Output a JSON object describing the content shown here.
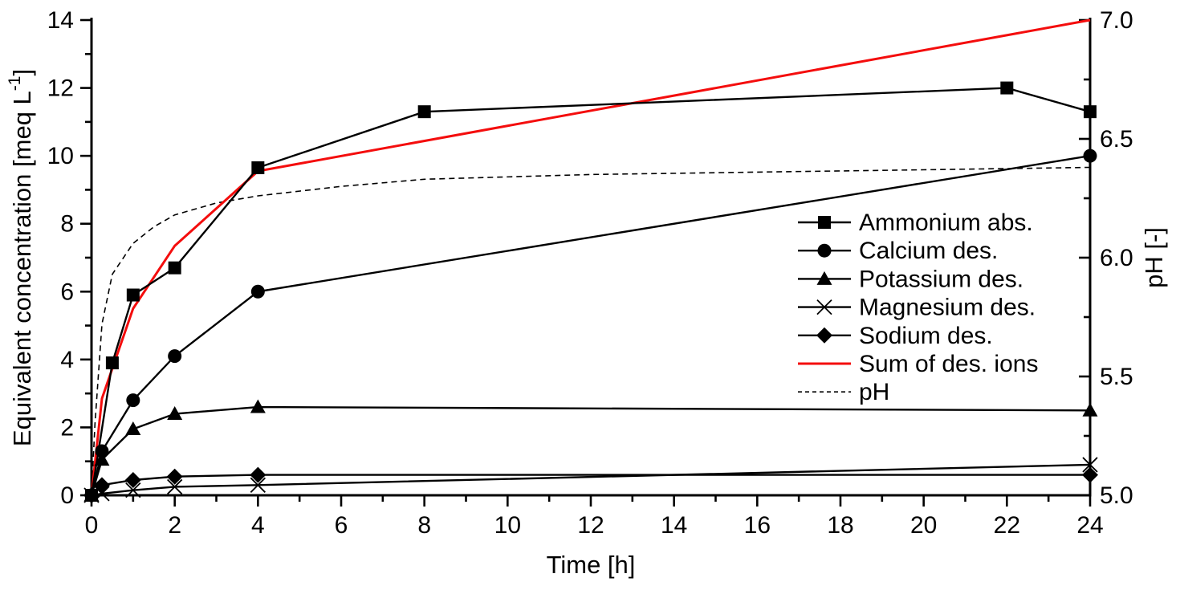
{
  "page": {
    "title": "",
    "background_color": "#ffffff",
    "foreground_color": "#000000",
    "accent_color": "#f40d0d"
  },
  "chart_data": {
    "type": "line",
    "title": "",
    "xlabel": "Time [h]",
    "ylabel_left": "Equivalent concentration [meq L⁻¹]",
    "ylabel_left_parts": {
      "pre": "Equivalent concentration [meq L",
      "sup": "-1",
      "post": "]"
    },
    "ylabel_right": "pH [-]",
    "xlim": [
      0,
      24
    ],
    "ylim_left": [
      0,
      14
    ],
    "ylim_right": [
      5.0,
      7.0
    ],
    "grid": false,
    "x_major_ticks": [
      0,
      2,
      4,
      6,
      8,
      10,
      12,
      14,
      16,
      18,
      20,
      22,
      24
    ],
    "x_tick_labels": [
      "0",
      "2",
      "4",
      "6",
      "8",
      "10",
      "12",
      "14",
      "16",
      "18",
      "20",
      "22",
      "24"
    ],
    "x_minor_ticks": [
      1,
      3,
      5,
      7,
      9,
      11,
      13,
      15,
      17,
      19,
      21,
      23
    ],
    "left_major_ticks": [
      0,
      2,
      4,
      6,
      8,
      10,
      12,
      14
    ],
    "left_tick_labels": [
      "0",
      "2",
      "4",
      "6",
      "8",
      "10",
      "12",
      "14"
    ],
    "left_minor_ticks": [
      1,
      3,
      5,
      7,
      9,
      11,
      13
    ],
    "right_major_ticks": [
      5.0,
      5.5,
      6.0,
      6.5,
      7.0
    ],
    "right_tick_labels": [
      "5.0",
      "5.5",
      "6.0",
      "6.5",
      "7.0"
    ],
    "right_minor_ticks": [
      5.25,
      5.75,
      6.25,
      6.75
    ],
    "legend": {
      "position": "inside-right"
    },
    "series": [
      {
        "name": "Ammonium abs.",
        "axis": "left",
        "marker": "square",
        "line_style": "solid",
        "color": "#000000",
        "points": [
          [
            0,
            0
          ],
          [
            0.5,
            3.9
          ],
          [
            1,
            5.9
          ],
          [
            2,
            6.7
          ],
          [
            4,
            9.65
          ],
          [
            8,
            11.3
          ],
          [
            22,
            12.0
          ],
          [
            24,
            11.3
          ]
        ]
      },
      {
        "name": "Calcium des.",
        "axis": "left",
        "marker": "circle",
        "line_style": "solid",
        "color": "#000000",
        "points": [
          [
            0,
            0
          ],
          [
            0.25,
            1.3
          ],
          [
            1,
            2.8
          ],
          [
            2,
            4.1
          ],
          [
            4,
            6.0
          ],
          [
            24,
            10.0
          ]
        ]
      },
      {
        "name": "Potassium des.",
        "axis": "left",
        "marker": "triangle-up",
        "line_style": "solid",
        "color": "#000000",
        "points": [
          [
            0,
            0
          ],
          [
            0.25,
            1.05
          ],
          [
            1,
            1.95
          ],
          [
            2,
            2.4
          ],
          [
            4,
            2.6
          ],
          [
            24,
            2.5
          ]
        ]
      },
      {
        "name": "Magnesium des.",
        "axis": "left",
        "marker": "x",
        "line_style": "solid",
        "color": "#000000",
        "points": [
          [
            0,
            0
          ],
          [
            0.25,
            0.05
          ],
          [
            1,
            0.15
          ],
          [
            2,
            0.25
          ],
          [
            4,
            0.3
          ],
          [
            24,
            0.9
          ]
        ]
      },
      {
        "name": "Sodium des.",
        "axis": "left",
        "marker": "diamond",
        "line_style": "solid",
        "color": "#000000",
        "points": [
          [
            0,
            0
          ],
          [
            0.25,
            0.3
          ],
          [
            1,
            0.45
          ],
          [
            2,
            0.55
          ],
          [
            4,
            0.6
          ],
          [
            24,
            0.6
          ]
        ]
      },
      {
        "name": "Sum of des. ions",
        "axis": "left",
        "marker": "none",
        "line_style": "solid",
        "color": "#f40d0d",
        "points": [
          [
            0,
            0
          ],
          [
            0.25,
            2.85
          ],
          [
            1,
            5.5
          ],
          [
            2,
            7.35
          ],
          [
            4,
            9.55
          ],
          [
            24,
            14.0
          ]
        ]
      },
      {
        "name": "pH",
        "axis": "right",
        "marker": "none",
        "line_style": "dashed",
        "color": "#000000",
        "points": [
          [
            0,
            5.0
          ],
          [
            0.083,
            5.3
          ],
          [
            0.25,
            5.72
          ],
          [
            0.5,
            5.93
          ],
          [
            1,
            6.06
          ],
          [
            1.5,
            6.13
          ],
          [
            2,
            6.18
          ],
          [
            3,
            6.23
          ],
          [
            4,
            6.26
          ],
          [
            6,
            6.3
          ],
          [
            8,
            6.33
          ],
          [
            12,
            6.35
          ],
          [
            16,
            6.36
          ],
          [
            20,
            6.37
          ],
          [
            24,
            6.38
          ]
        ]
      }
    ]
  }
}
